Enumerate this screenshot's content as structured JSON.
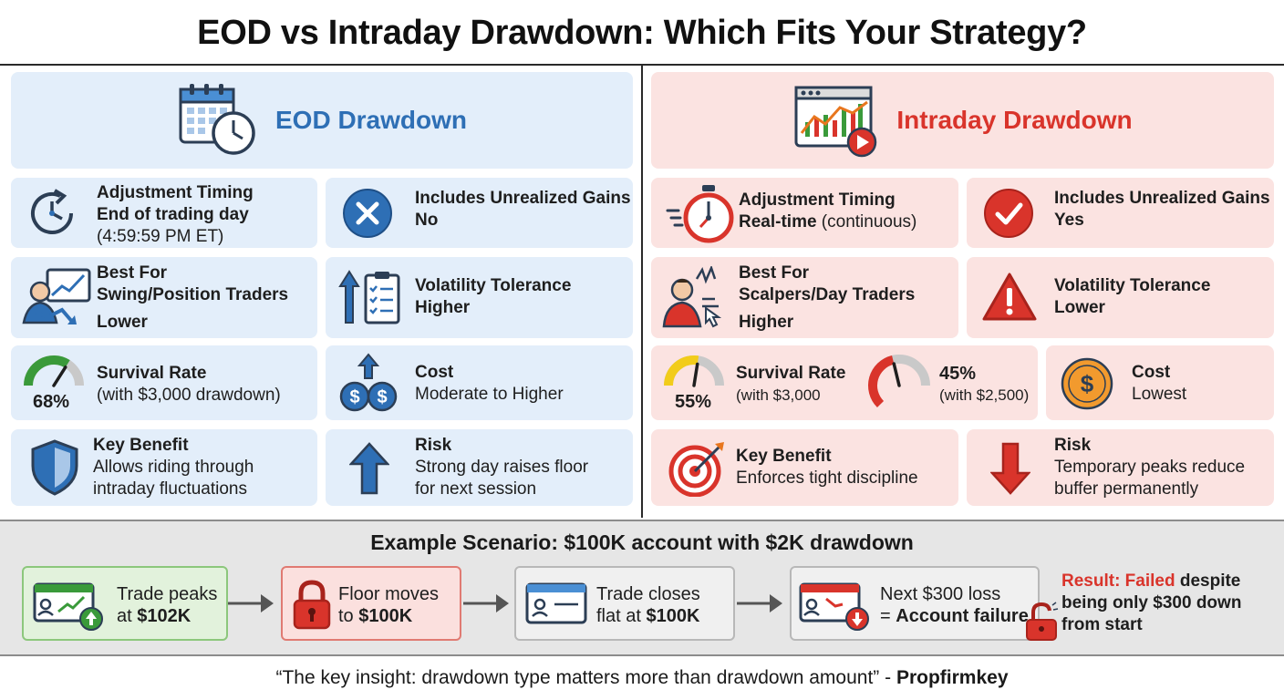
{
  "title": "EOD vs Intraday Drawdown: Which Fits Your Strategy?",
  "eod": {
    "header": "EOD Drawdown",
    "timing": {
      "label": "Adjustment Timing",
      "value": "End of trading day",
      "detail": "(4:59:59 PM ET)"
    },
    "unrealized": {
      "label": "Includes Unrealized Gains",
      "value": "No"
    },
    "best_for": {
      "label": "Best For",
      "value": "Swing/Position Traders",
      "detail": "Lower"
    },
    "volatility": {
      "label": "Volatility Tolerance",
      "value": "Higher"
    },
    "survival": {
      "percent": "68%",
      "level": 0.68,
      "label": "Survival Rate",
      "detail": "(with $3,000 drawdown)"
    },
    "cost": {
      "label": "Cost",
      "value": "Moderate to Higher"
    },
    "benefit": {
      "label": "Key Benefit",
      "line1": "Allows riding through",
      "line2": "intraday fluctuations"
    },
    "risk": {
      "label": "Risk",
      "line1": "Strong day raises floor",
      "line2": "for next session"
    }
  },
  "intraday": {
    "header": "Intraday Drawdown",
    "timing": {
      "label": "Adjustment Timing",
      "value_bold": "Real-time",
      "value_rest": " (continuous)"
    },
    "unrealized": {
      "label": "Includes Unrealized Gains",
      "value": "Yes"
    },
    "best_for": {
      "label": "Best For",
      "value": "Scalpers/Day Traders",
      "detail": "Higher"
    },
    "volatility": {
      "label": "Volatility Tolerance",
      "value": "Lower"
    },
    "survival": {
      "percent1": "55%",
      "level1": 0.55,
      "label": "Survival Rate",
      "detail1": "(with $3,000",
      "percent2": "45%",
      "level2": 0.45,
      "detail2": "(with $2,500)"
    },
    "cost": {
      "label": "Cost",
      "value": "Lowest"
    },
    "benefit": {
      "label": "Key Benefit",
      "value": "Enforces tight discipline"
    },
    "risk": {
      "label": "Risk",
      "line1": "Temporary peaks reduce",
      "line2": "buffer permanently"
    }
  },
  "scenario": {
    "title": "Example Scenario: $100K account with $2K drawdown",
    "steps": [
      {
        "line1": "Trade peaks",
        "line2_pre": "at ",
        "line2_bold": "$102K"
      },
      {
        "line1": "Floor moves",
        "line2_pre": "to ",
        "line2_bold": "$100K"
      },
      {
        "line1": "Trade closes",
        "line2_pre": "flat at ",
        "line2_bold": "$100K"
      },
      {
        "line1": "Next $300 loss",
        "line2_pre": "= ",
        "line2_bold": "Account failure"
      }
    ],
    "result": {
      "red": "Result: Failed",
      "rest": " despite",
      "line2": "being only $300 down",
      "line3": "from start"
    }
  },
  "quote": {
    "text": "“The key insight: drawdown type matters more than drawdown amount” - ",
    "author": "Propfirmkey"
  },
  "colors": {
    "blue_accent": "#2e6fb5",
    "red_accent": "#d9342b",
    "blue_card": "#e3eefa",
    "red_card": "#fbe3e1",
    "green": "#3a9a3a",
    "yellow": "#f2cc1a"
  }
}
